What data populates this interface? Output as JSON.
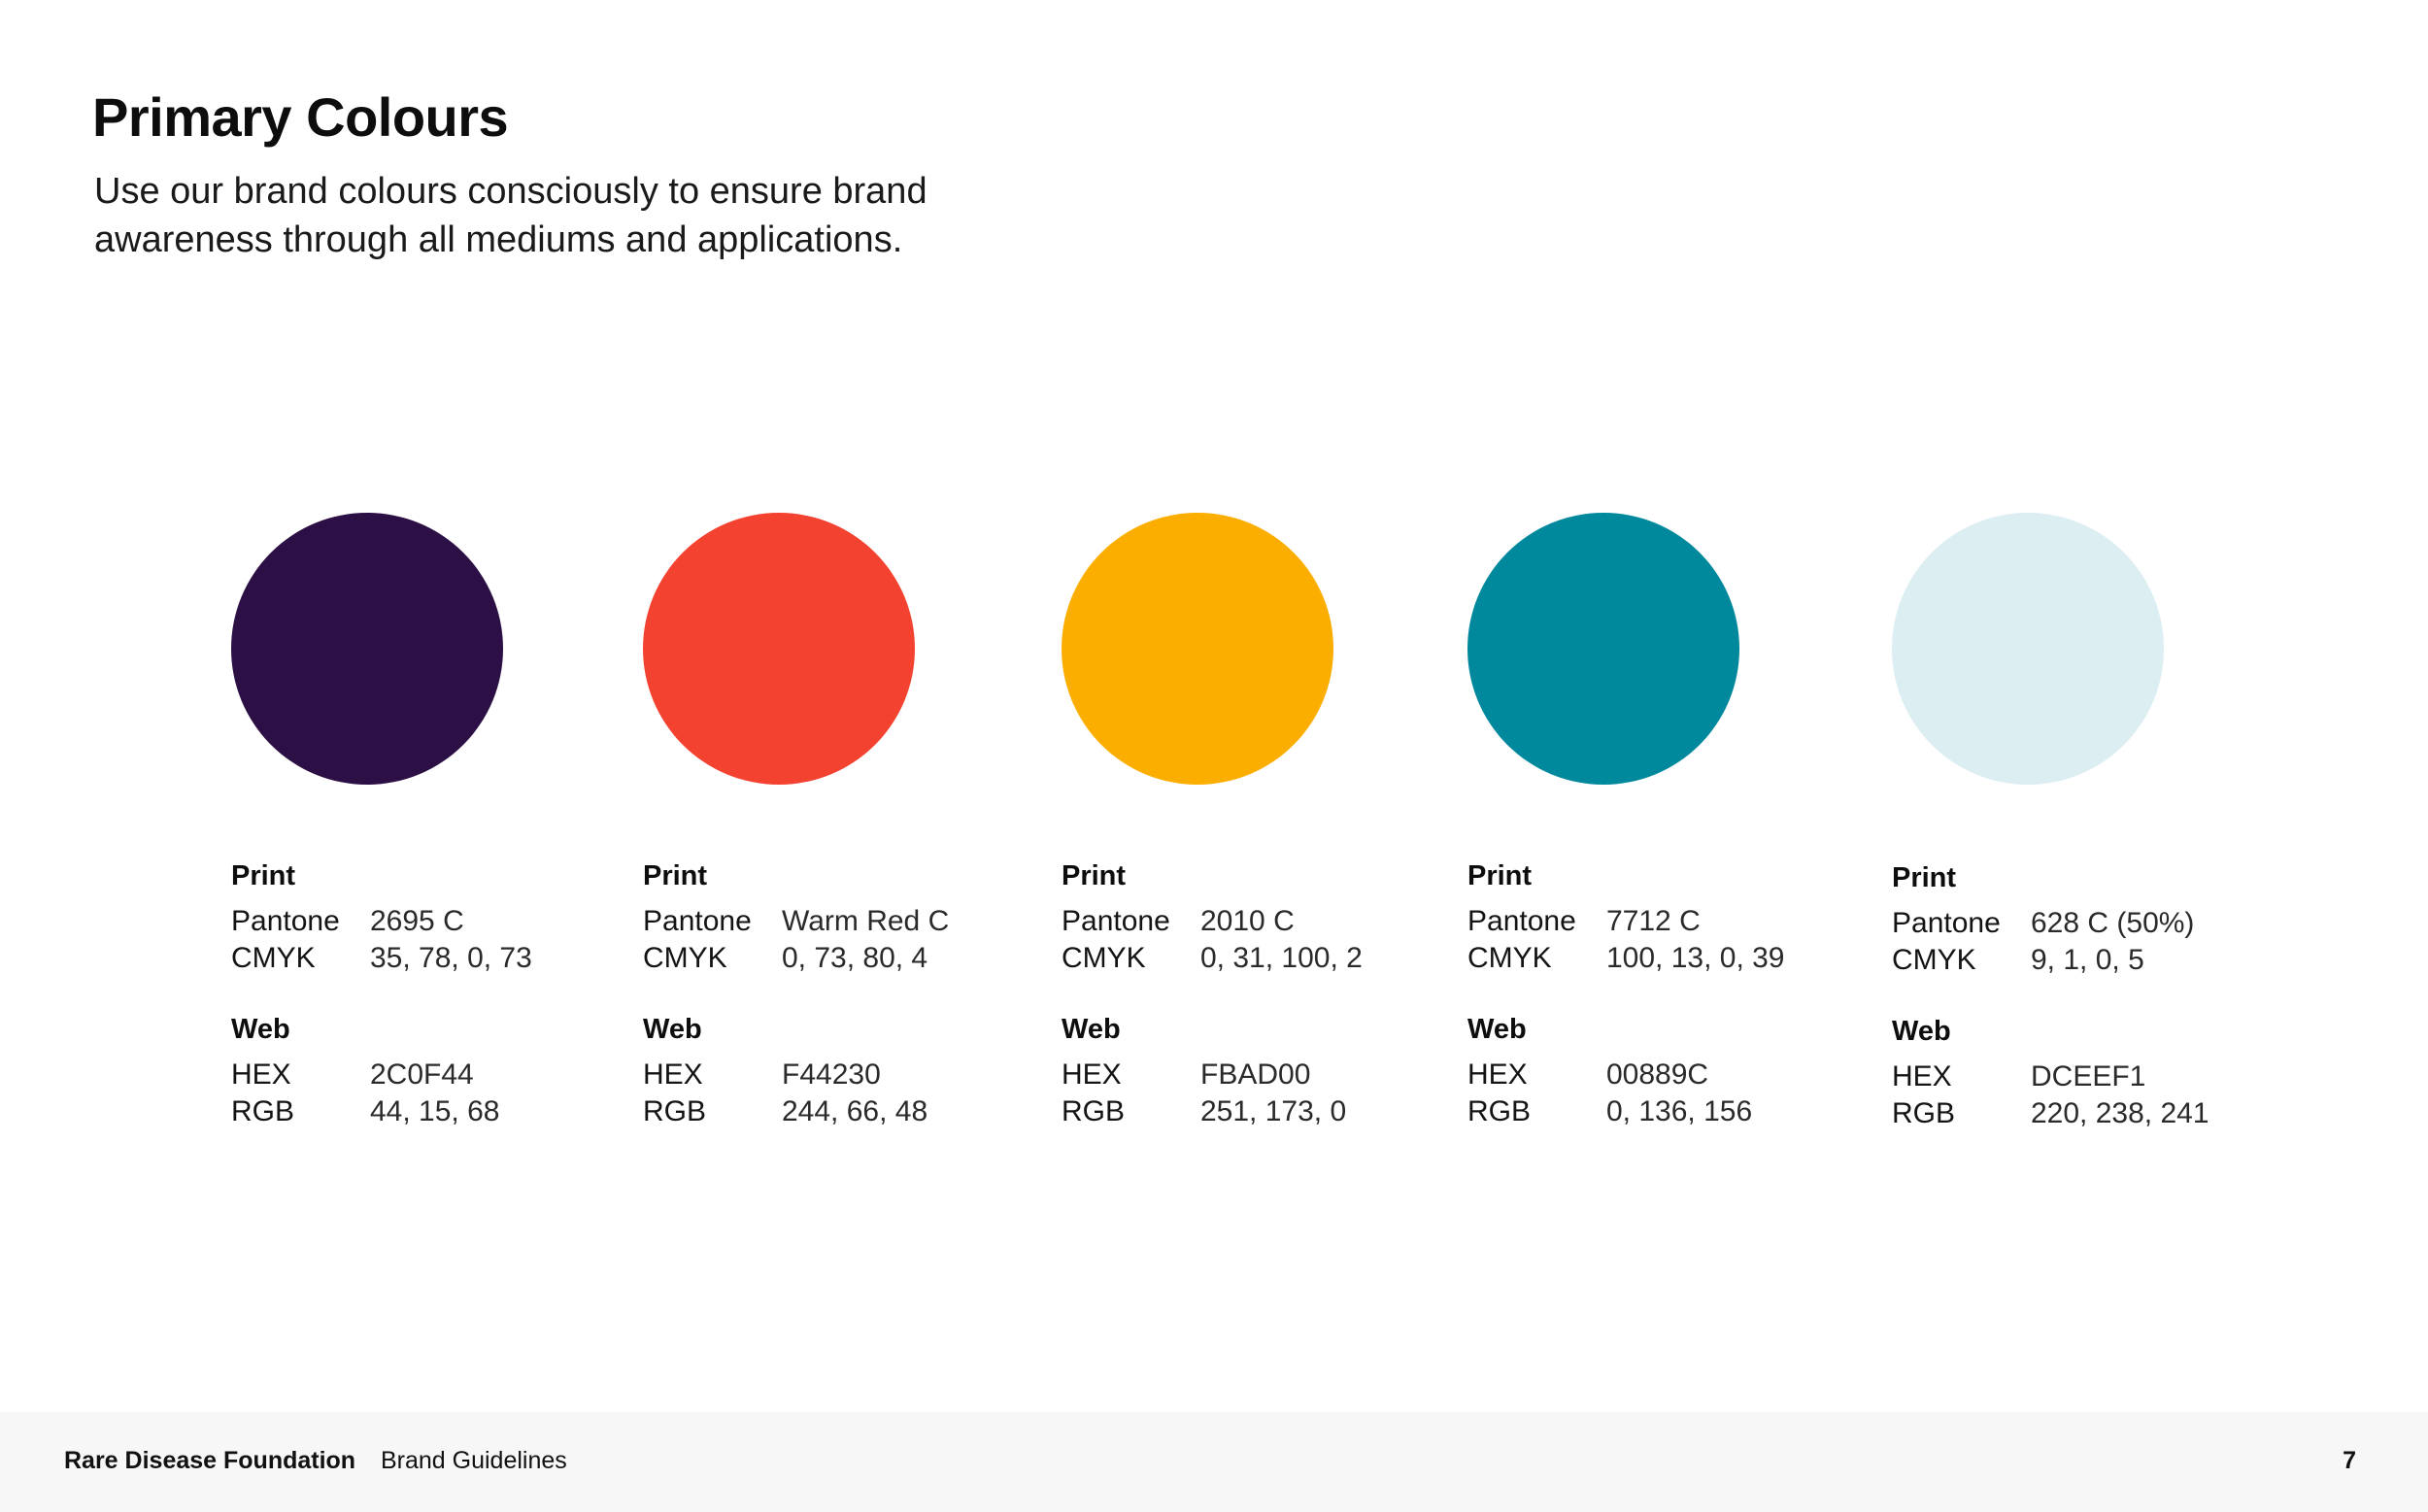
{
  "page": {
    "title": "Primary Colours",
    "subtitle": "Use our brand colours consciously to ensure brand awareness through all mediums and applications."
  },
  "swatches": [
    {
      "color": "#2C0F44",
      "print_label": "Print",
      "pantone_label": "Pantone",
      "pantone": "2695 C",
      "cmyk_label": "CMYK",
      "cmyk": "35, 78, 0, 73",
      "web_label": "Web",
      "hex_label": "HEX",
      "hex": "2C0F44",
      "rgb_label": "RGB",
      "rgb": "44, 15, 68"
    },
    {
      "color": "#F44230",
      "print_label": "Print",
      "pantone_label": "Pantone",
      "pantone": "Warm Red C",
      "cmyk_label": "CMYK",
      "cmyk": "0, 73, 80, 4",
      "web_label": "Web",
      "hex_label": "HEX",
      "hex": "F44230",
      "rgb_label": "RGB",
      "rgb": "244, 66, 48"
    },
    {
      "color": "#FBAD00",
      "print_label": "Print",
      "pantone_label": "Pantone",
      "pantone": "2010 C",
      "cmyk_label": "CMYK",
      "cmyk": "0, 31, 100, 2",
      "web_label": "Web",
      "hex_label": "HEX",
      "hex": "FBAD00",
      "rgb_label": "RGB",
      "rgb": "251, 173, 0"
    },
    {
      "color": "#00889C",
      "print_label": "Print",
      "pantone_label": "Pantone",
      "pantone": "7712 C",
      "cmyk_label": "CMYK",
      "cmyk": "100, 13, 0, 39",
      "web_label": "Web",
      "hex_label": "HEX",
      "hex": "00889C",
      "rgb_label": "RGB",
      "rgb": "0, 136, 156"
    },
    {
      "color": "#DCEEF1",
      "print_label": "Print",
      "pantone_label": "Pantone",
      "pantone": "628 C (50%)",
      "cmyk_label": "CMYK",
      "cmyk": "9, 1, 0, 5",
      "web_label": "Web",
      "hex_label": "HEX",
      "hex": "DCEEF1",
      "rgb_label": "RGB",
      "rgb": "220, 238, 241"
    }
  ],
  "footer": {
    "org": "Rare Disease Foundation",
    "doc": "Brand Guidelines",
    "page_number": "7"
  }
}
